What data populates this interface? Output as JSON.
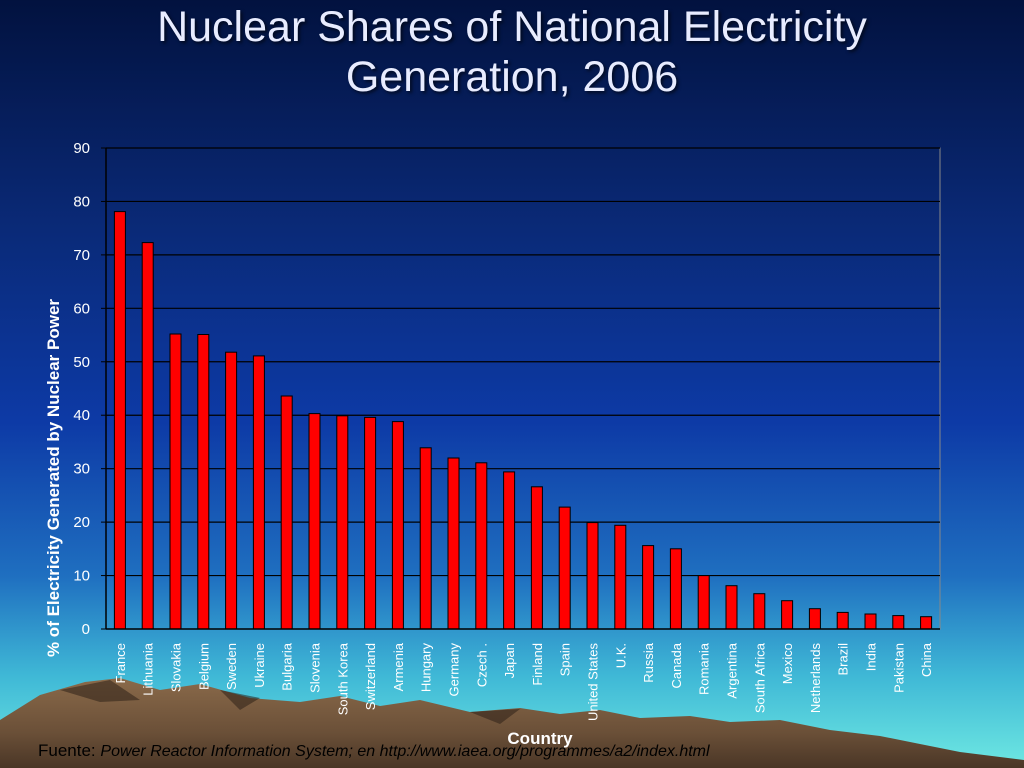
{
  "slide": {
    "title_line1": "Nuclear Shares of National Electricity",
    "title_line2": "Generation, 2006",
    "source_label": "Fuente:",
    "source_text": "Power Reactor Information System; en  http://www.iaea.org/programmes/a2/index.html"
  },
  "colors": {
    "bar": "#ff0000",
    "bar_stroke": "#000000",
    "grid": "#000000",
    "text": "#ffffff"
  },
  "chart_data": {
    "type": "bar",
    "title": "",
    "xlabel": "Country",
    "ylabel": "% of Electricity Generated by Nuclear Power",
    "ylim": [
      0,
      90
    ],
    "yticks": [
      0,
      10,
      20,
      30,
      40,
      50,
      60,
      70,
      80,
      90
    ],
    "grid": true,
    "categories": [
      "France",
      "Lithuania",
      "Slovakia",
      "Belgium",
      "Sweden",
      "Ukraine",
      "Bulgaria",
      "Slovenia",
      "South Korea",
      "Switzerland",
      "Armenia",
      "Hungary",
      "Germany",
      "Czech .",
      "Japan",
      "Finland",
      "Spain",
      "United States",
      "U.K.",
      "Russia",
      "Canada",
      "Romania",
      "Argentina",
      "South Africa",
      "Mexico",
      "Netherlands",
      "Brazil",
      "India",
      "Pakistan",
      "China"
    ],
    "values": [
      78.1,
      72.3,
      55.2,
      55.1,
      51.8,
      51.1,
      43.6,
      40.3,
      39.9,
      39.6,
      38.8,
      33.9,
      32.0,
      31.1,
      29.4,
      26.6,
      22.8,
      19.9,
      19.4,
      15.6,
      15.0,
      10.0,
      8.1,
      6.6,
      5.3,
      3.8,
      3.1,
      2.8,
      2.5,
      2.3
    ]
  }
}
